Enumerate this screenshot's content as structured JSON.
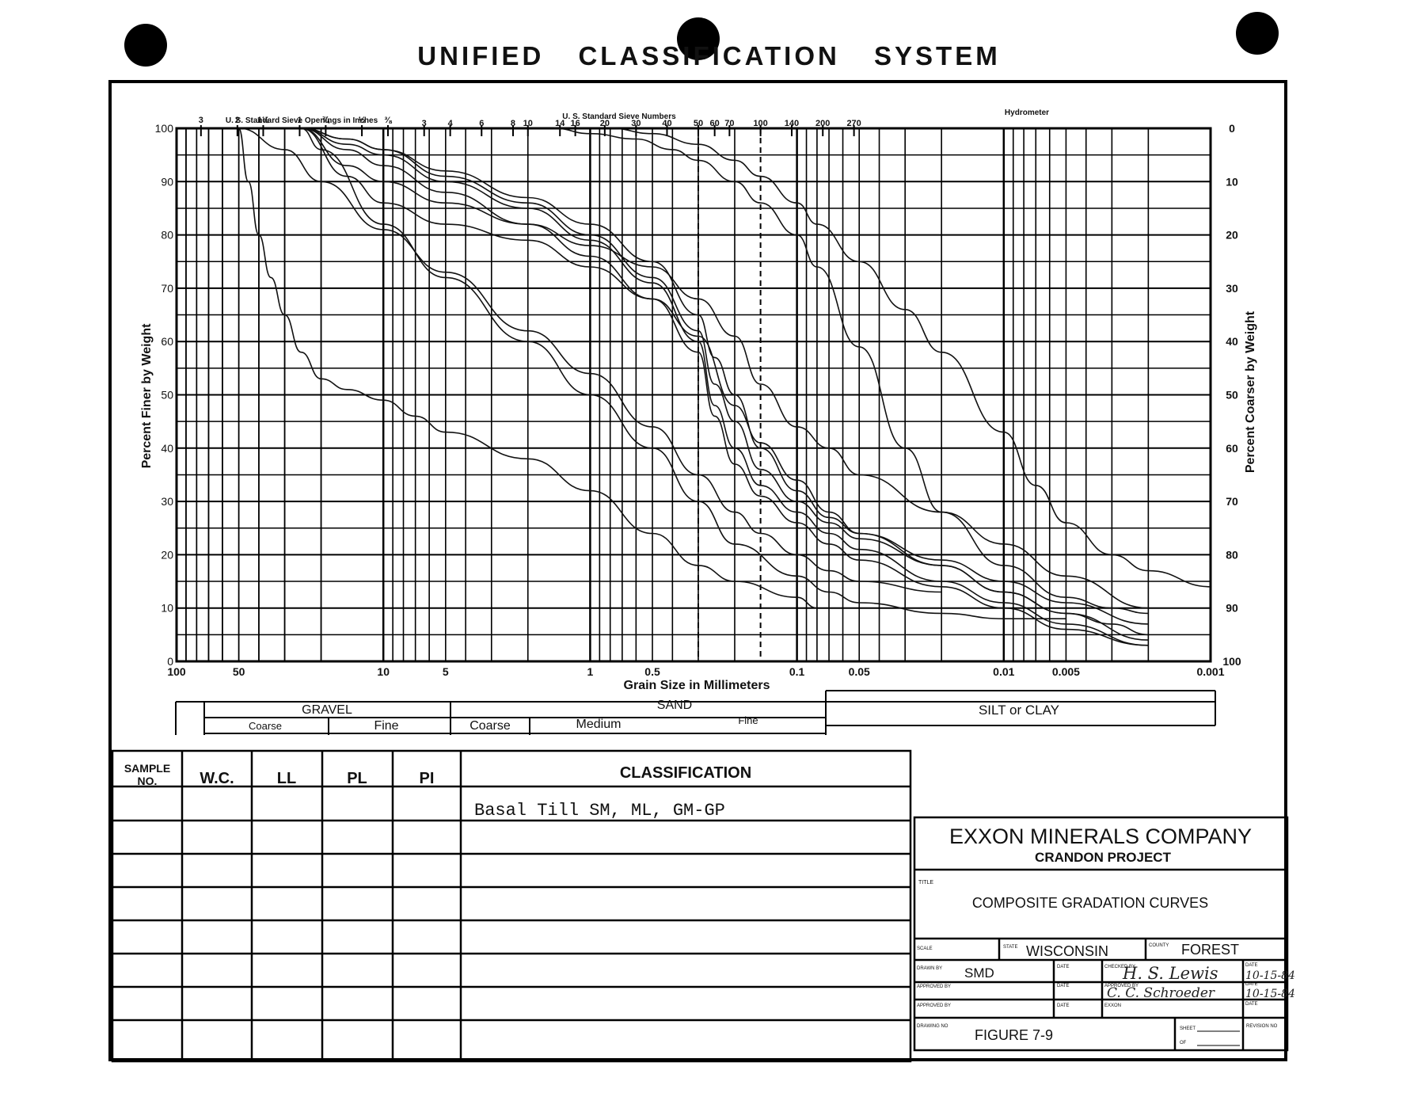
{
  "page": {
    "title": "UNIFIED CLASSIFICATION SYSTEM"
  },
  "chart_data": {
    "type": "line",
    "title": "UNIFIED CLASSIFICATION SYSTEM",
    "xlabel": "Grain Size in Millimeters",
    "ylabel": "Percent Finer by Weight",
    "ylabel_right": "Percent Coarser by Weight",
    "x_scale": "log",
    "x_reversed": true,
    "xlim": [
      100,
      0.001
    ],
    "ylim": [
      0,
      100
    ],
    "x_ticks": [
      {
        "value": 100,
        "label": "100"
      },
      {
        "value": 50,
        "label": "50"
      },
      {
        "value": 10,
        "label": "10"
      },
      {
        "value": 5,
        "label": "5"
      },
      {
        "value": 1,
        "label": "1"
      },
      {
        "value": 0.5,
        "label": "0.5"
      },
      {
        "value": 0.1,
        "label": "0.1"
      },
      {
        "value": 0.05,
        "label": "0.05"
      },
      {
        "value": 0.01,
        "label": "0.01"
      },
      {
        "value": 0.005,
        "label": "0.005"
      },
      {
        "value": 0.001,
        "label": "0.001"
      }
    ],
    "y_ticks_left": [
      "0",
      "10",
      "20",
      "30",
      "40",
      "50",
      "60",
      "70",
      "80",
      "90",
      "100"
    ],
    "y_ticks_right": [
      "100",
      "90",
      "80",
      "70",
      "60",
      "50",
      "40",
      "30",
      "20",
      "10",
      "0"
    ],
    "top_axis_inches": {
      "label": "U. S. Standard Sieve Openings in Inches",
      "ticks": [
        {
          "label": "3",
          "mm": 76.2
        },
        {
          "label": "2",
          "mm": 50.8
        },
        {
          "label": "1½",
          "mm": 38.1
        },
        {
          "label": "1",
          "mm": 25.4
        },
        {
          "label": "¾",
          "mm": 19.0
        },
        {
          "label": "½",
          "mm": 12.7
        },
        {
          "label": "⅜",
          "mm": 9.5
        }
      ]
    },
    "top_axis_sieves": {
      "label": "U. S. Standard Sieve Numbers",
      "ticks": [
        {
          "label": "3",
          "mm": 6.35
        },
        {
          "label": "4",
          "mm": 4.75
        },
        {
          "label": "6",
          "mm": 3.35
        },
        {
          "label": "8",
          "mm": 2.36
        },
        {
          "label": "10",
          "mm": 2.0
        },
        {
          "label": "14",
          "mm": 1.4
        },
        {
          "label": "16",
          "mm": 1.18
        },
        {
          "label": "20",
          "mm": 0.85
        },
        {
          "label": "30",
          "mm": 0.6
        },
        {
          "label": "40",
          "mm": 0.425
        },
        {
          "label": "50",
          "mm": 0.3
        },
        {
          "label": "60",
          "mm": 0.25
        },
        {
          "label": "70",
          "mm": 0.212
        },
        {
          "label": "100",
          "mm": 0.15
        },
        {
          "label": "140",
          "mm": 0.106
        },
        {
          "label": "200",
          "mm": 0.075
        },
        {
          "label": "270",
          "mm": 0.053
        }
      ]
    },
    "top_axis_hydrometer_label": "Hydrometer",
    "grid": true,
    "series": [
      {
        "x": [
          50,
          45,
          40,
          35,
          30,
          25,
          20,
          15,
          10,
          7,
          5,
          2,
          1,
          0.5,
          0.3,
          0.2,
          0.1,
          0.08
        ],
        "values": [
          100,
          90,
          80,
          72,
          65,
          58,
          53,
          51,
          49,
          46,
          43,
          38,
          32,
          24,
          18,
          15,
          12,
          10
        ]
      },
      {
        "x": [
          50,
          30,
          20,
          10,
          5,
          2,
          1,
          0.5,
          0.3,
          0.2,
          0.15,
          0.1,
          0.07,
          0.05,
          0.02
        ],
        "values": [
          100,
          96,
          90,
          81,
          73,
          62,
          54,
          44,
          35,
          28,
          24,
          20,
          17,
          15,
          13
        ]
      },
      {
        "x": [
          25,
          15,
          10,
          5,
          2,
          1,
          0.5,
          0.3,
          0.2,
          0.15,
          0.1,
          0.07,
          0.05,
          0.02,
          0.01,
          0.005,
          0.003,
          0.002
        ],
        "values": [
          100,
          91,
          86,
          82,
          79,
          74,
          68,
          61,
          48,
          41,
          34,
          28,
          24,
          18,
          13,
          9,
          7,
          5
        ]
      },
      {
        "x": [
          25,
          15,
          10,
          5,
          2,
          1,
          0.5,
          0.3,
          0.25,
          0.2,
          0.15,
          0.1,
          0.07,
          0.05,
          0.02,
          0.01,
          0.005,
          0.002
        ],
        "values": [
          100,
          98,
          96,
          92,
          87,
          82,
          75,
          65,
          57,
          50,
          40,
          32,
          27,
          24,
          19,
          15,
          11,
          7
        ]
      },
      {
        "x": [
          25,
          15,
          10,
          5,
          2,
          1,
          0.5,
          0.3,
          0.25,
          0.2,
          0.15,
          0.1,
          0.07,
          0.05,
          0.02,
          0.01,
          0.005,
          0.002
        ],
        "values": [
          100,
          98,
          96,
          91,
          86,
          80,
          72,
          62,
          52,
          45,
          36,
          30,
          26,
          23,
          18,
          13,
          9,
          4
        ]
      },
      {
        "x": [
          25,
          15,
          10,
          5,
          2,
          1,
          0.5,
          0.3,
          0.25,
          0.2,
          0.15,
          0.1,
          0.07,
          0.05,
          0.02,
          0.01,
          0.005,
          0.002
        ],
        "values": [
          100,
          97,
          95,
          90,
          85,
          79,
          71,
          60,
          48,
          40,
          33,
          28,
          24,
          21,
          15,
          11,
          7,
          3
        ]
      },
      {
        "x": [
          25,
          15,
          10,
          5,
          2,
          1,
          0.5,
          0.3,
          0.25,
          0.2,
          0.15,
          0.1,
          0.07,
          0.05,
          0.02,
          0.01,
          0.005,
          0.002
        ],
        "values": [
          100,
          96,
          93,
          88,
          82,
          76,
          68,
          58,
          46,
          37,
          31,
          26,
          22,
          19,
          14,
          10,
          6,
          3
        ]
      },
      {
        "x": [
          25,
          20,
          10,
          5,
          2,
          1,
          0.5,
          0.3,
          0.2,
          0.1,
          0.07,
          0.05,
          0.02,
          0.01,
          0.005
        ],
        "values": [
          100,
          96,
          82,
          72,
          60,
          50,
          40,
          30,
          22,
          16,
          13,
          11,
          9,
          8,
          8
        ]
      },
      {
        "x": [
          25,
          15,
          10,
          5,
          2,
          1,
          0.5,
          0.3,
          0.2,
          0.15,
          0.1,
          0.07,
          0.05,
          0.02,
          0.01,
          0.005,
          0.002
        ],
        "values": [
          100,
          93,
          90,
          86,
          82,
          78,
          74,
          68,
          61,
          52,
          44,
          40,
          35,
          28,
          22,
          16,
          10
        ]
      },
      {
        "x": [
          1.5,
          1,
          0.6,
          0.4,
          0.3,
          0.2,
          0.15,
          0.1,
          0.08,
          0.05,
          0.03,
          0.02,
          0.01,
          0.005,
          0.003,
          0.002
        ],
        "values": [
          100,
          99,
          98,
          96,
          94,
          90,
          86,
          80,
          74,
          59,
          40,
          28,
          18,
          12,
          10,
          9
        ]
      },
      {
        "x": [
          0.8,
          0.5,
          0.3,
          0.2,
          0.15,
          0.1,
          0.08,
          0.05,
          0.03,
          0.02,
          0.01,
          0.007,
          0.005,
          0.003,
          0.002,
          0.001
        ],
        "values": [
          100,
          99,
          97,
          94,
          91,
          86,
          82,
          75,
          66,
          58,
          43,
          33,
          26,
          20,
          17,
          14
        ]
      }
    ]
  },
  "soil_classes": {
    "gravel": "GRAVEL",
    "sand": "SAND",
    "silt_clay": "SILT or CLAY",
    "coarse": "Coarse",
    "fine": "Fine",
    "sand_coarse": "Coarse",
    "medium": "Medium",
    "sand_fine": "Fine"
  },
  "sample_table": {
    "headers": [
      "SAMPLE NO.",
      "W.C.",
      "LL",
      "PL",
      "PI",
      "CLASSIFICATION"
    ],
    "header_sample_line1": "SAMPLE",
    "header_sample_line2": "NO.",
    "rows": [
      {
        "classification": "Basal Till SM, ML, GM-GP"
      }
    ]
  },
  "title_block": {
    "company": "EXXON MINERALS COMPANY",
    "project": "CRANDON PROJECT",
    "title_label": "TITLE",
    "title": "COMPOSITE GRADATION CURVES",
    "scale_label": "SCALE",
    "state_label": "STATE",
    "state": "WISCONSIN",
    "county_label": "COUNTY",
    "county": "FOREST",
    "drawn_by_label": "DRAWN BY",
    "drawn_by": "SMD",
    "date_label": "DATE",
    "checked_by_label": "CHECKED BY",
    "checked_by_signature": "H. S. Lewis",
    "checked_date": "10-15-84",
    "approved_by_label": "APPROVED BY",
    "approved_by_signature": "C. C. Schroeder",
    "approved_date": "10-15-84",
    "exxon_label": "EXXON",
    "drawing_no_label": "DRAWING NO",
    "drawing_no": "FIGURE 7-9",
    "sheet_label": "SHEET",
    "of_label": "OF",
    "revision_label": "REVISION NO"
  }
}
